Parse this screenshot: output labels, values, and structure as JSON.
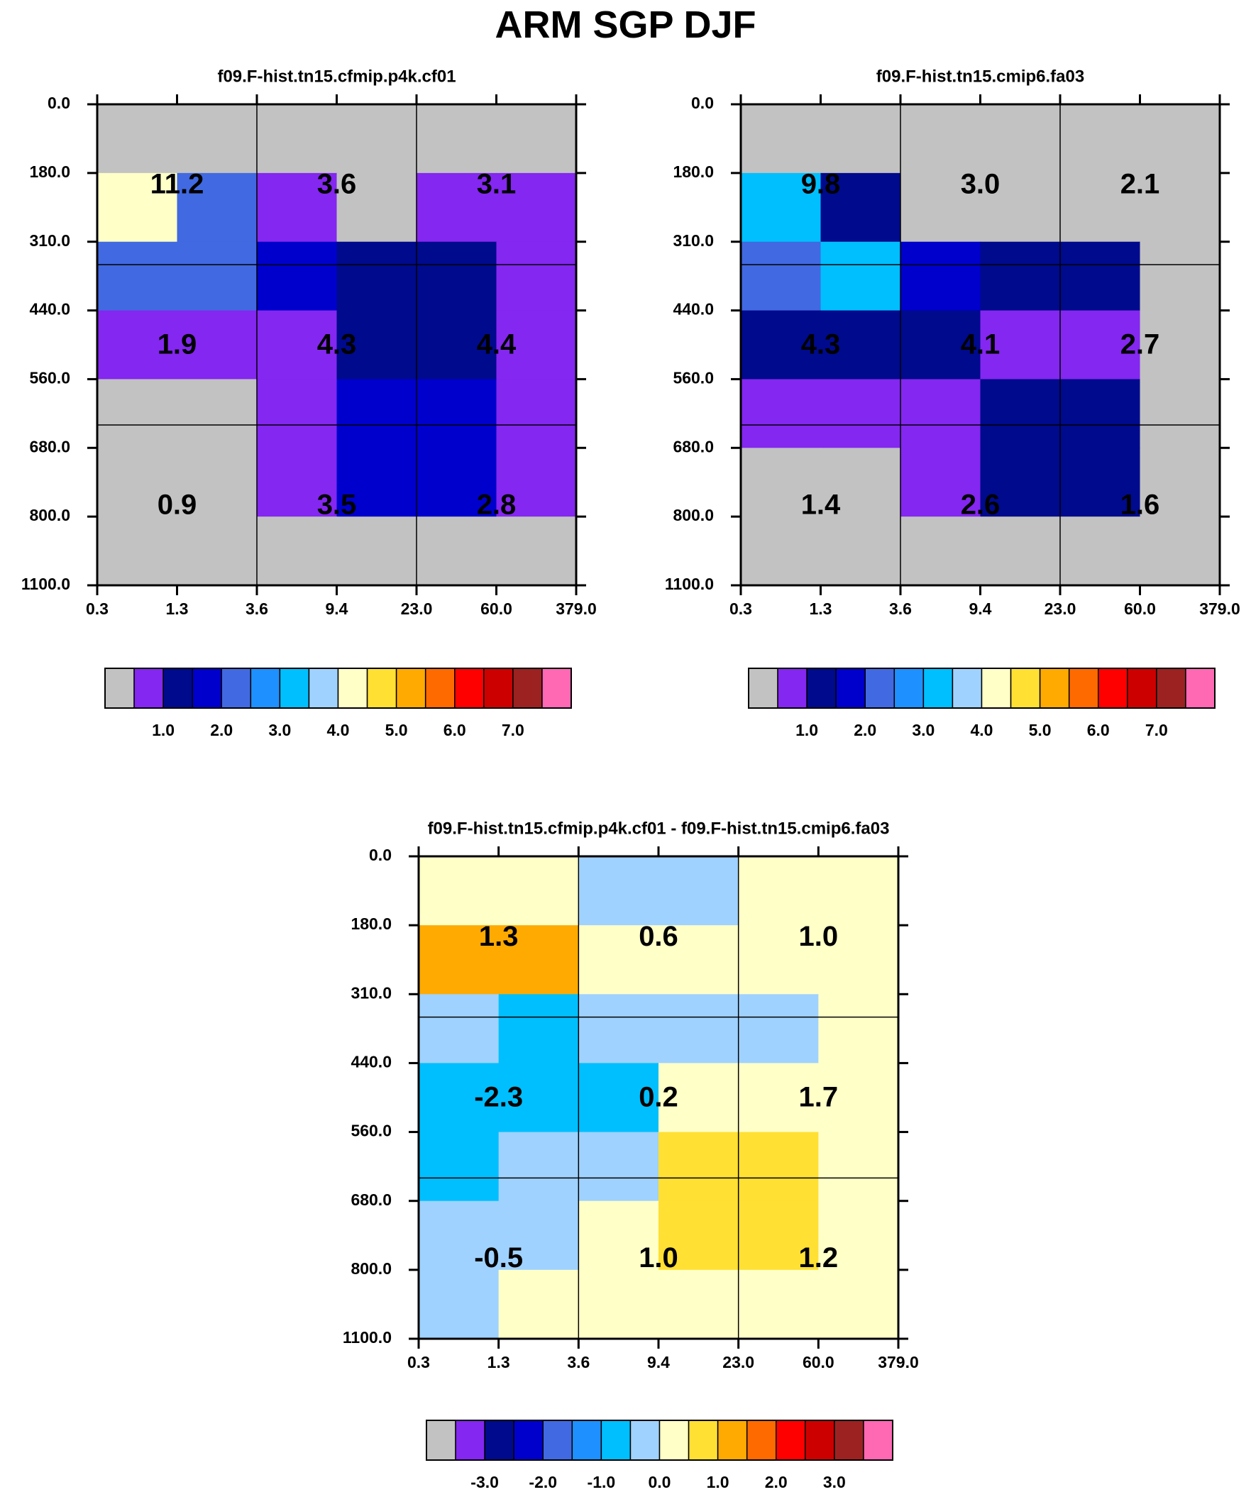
{
  "figure": {
    "title": "ARM SGP DJF"
  },
  "colors": {
    "missing": "#c2c2c2",
    "grid": "#000000",
    "palette": [
      "#c2c2c2",
      "#8427f0",
      "#000a8c",
      "#0000cd",
      "#4169e1",
      "#1e90ff",
      "#00bfff",
      "#a0d2ff",
      "#ffffc8",
      "#ffe033",
      "#ffaa00",
      "#ff6a00",
      "#ff0000",
      "#cd0000",
      "#9c2222",
      "#ff69b4"
    ]
  },
  "chart_data": [
    {
      "type": "heatmap",
      "title": "f09.F-hist.tn15.cfmip.p4k.cf01",
      "xticks": [
        "0.3",
        "1.3",
        "3.6",
        "9.4",
        "23.0",
        "60.0",
        "379.0"
      ],
      "yticks": [
        "0.0",
        "180.0",
        "310.0",
        "440.0",
        "560.0",
        "680.0",
        "800.0",
        "1100.0"
      ],
      "cells": [
        [
          0,
          0,
          0,
          0,
          0,
          0
        ],
        [
          8,
          4,
          1,
          0,
          1,
          1
        ],
        [
          4,
          4,
          3,
          2,
          2,
          1
        ],
        [
          1,
          1,
          1,
          2,
          2,
          1
        ],
        [
          0,
          0,
          1,
          3,
          3,
          1
        ],
        [
          0,
          0,
          1,
          3,
          3,
          1
        ],
        [
          0,
          0,
          0,
          0,
          0,
          0
        ]
      ],
      "annotations": [
        {
          "col": 0,
          "row": 0,
          "text": "11.2"
        },
        {
          "col": 1,
          "row": 0,
          "text": "3.6"
        },
        {
          "col": 2,
          "row": 0,
          "text": "3.1"
        },
        {
          "col": 0,
          "row": 1,
          "text": "1.9"
        },
        {
          "col": 1,
          "row": 1,
          "text": "4.3"
        },
        {
          "col": 2,
          "row": 1,
          "text": "4.4"
        },
        {
          "col": 0,
          "row": 2,
          "text": "0.9"
        },
        {
          "col": 1,
          "row": 2,
          "text": "3.5"
        },
        {
          "col": 2,
          "row": 2,
          "text": "2.8"
        }
      ],
      "colorbar": {
        "labels": [
          "1.0",
          "2.0",
          "3.0",
          "4.0",
          "5.0",
          "6.0",
          "7.0"
        ]
      }
    },
    {
      "type": "heatmap",
      "title": "f09.F-hist.tn15.cmip6.fa03",
      "xticks": [
        "0.3",
        "1.3",
        "3.6",
        "9.4",
        "23.0",
        "60.0",
        "379.0"
      ],
      "yticks": [
        "0.0",
        "180.0",
        "310.0",
        "440.0",
        "560.0",
        "680.0",
        "800.0",
        "1100.0"
      ],
      "cells": [
        [
          0,
          0,
          0,
          0,
          0,
          0
        ],
        [
          6,
          2,
          0,
          0,
          0,
          0
        ],
        [
          4,
          6,
          3,
          2,
          2,
          0
        ],
        [
          2,
          2,
          2,
          1,
          1,
          0
        ],
        [
          1,
          1,
          1,
          2,
          2,
          0
        ],
        [
          0,
          0,
          1,
          2,
          2,
          0
        ],
        [
          0,
          0,
          0,
          0,
          0,
          0
        ]
      ],
      "annotations": [
        {
          "col": 0,
          "row": 0,
          "text": "9.8"
        },
        {
          "col": 1,
          "row": 0,
          "text": "3.0"
        },
        {
          "col": 2,
          "row": 0,
          "text": "2.1"
        },
        {
          "col": 0,
          "row": 1,
          "text": "4.3"
        },
        {
          "col": 1,
          "row": 1,
          "text": "4.1"
        },
        {
          "col": 2,
          "row": 1,
          "text": "2.7"
        },
        {
          "col": 0,
          "row": 2,
          "text": "1.4"
        },
        {
          "col": 1,
          "row": 2,
          "text": "2.6"
        },
        {
          "col": 2,
          "row": 2,
          "text": "1.6"
        }
      ],
      "colorbar": {
        "labels": [
          "1.0",
          "2.0",
          "3.0",
          "4.0",
          "5.0",
          "6.0",
          "7.0"
        ]
      }
    },
    {
      "type": "heatmap",
      "title": "f09.F-hist.tn15.cfmip.p4k.cf01 - f09.F-hist.tn15.cmip6.fa03",
      "xticks": [
        "0.3",
        "1.3",
        "3.6",
        "9.4",
        "23.0",
        "60.0",
        "379.0"
      ],
      "yticks": [
        "0.0",
        "180.0",
        "310.0",
        "440.0",
        "560.0",
        "680.0",
        "800.0",
        "1100.0"
      ],
      "cells": [
        [
          8,
          8,
          7,
          7,
          8,
          8
        ],
        [
          10,
          10,
          8,
          8,
          8,
          8
        ],
        [
          7,
          6,
          7,
          7,
          7,
          8
        ],
        [
          6,
          6,
          6,
          8,
          8,
          8
        ],
        [
          6,
          7,
          7,
          9,
          9,
          8
        ],
        [
          7,
          7,
          8,
          9,
          9,
          8
        ],
        [
          7,
          8,
          8,
          8,
          8,
          8
        ]
      ],
      "annotations": [
        {
          "col": 0,
          "row": 0,
          "text": "1.3"
        },
        {
          "col": 1,
          "row": 0,
          "text": "0.6"
        },
        {
          "col": 2,
          "row": 0,
          "text": "1.0"
        },
        {
          "col": 0,
          "row": 1,
          "text": "-2.3"
        },
        {
          "col": 1,
          "row": 1,
          "text": "0.2"
        },
        {
          "col": 2,
          "row": 1,
          "text": "1.7"
        },
        {
          "col": 0,
          "row": 2,
          "text": "-0.5"
        },
        {
          "col": 1,
          "row": 2,
          "text": "1.0"
        },
        {
          "col": 2,
          "row": 2,
          "text": "1.2"
        }
      ],
      "colorbar": {
        "labels": [
          "-3.0",
          "-2.0",
          "-1.0",
          "0.0",
          "1.0",
          "2.0",
          "3.0"
        ]
      }
    }
  ]
}
